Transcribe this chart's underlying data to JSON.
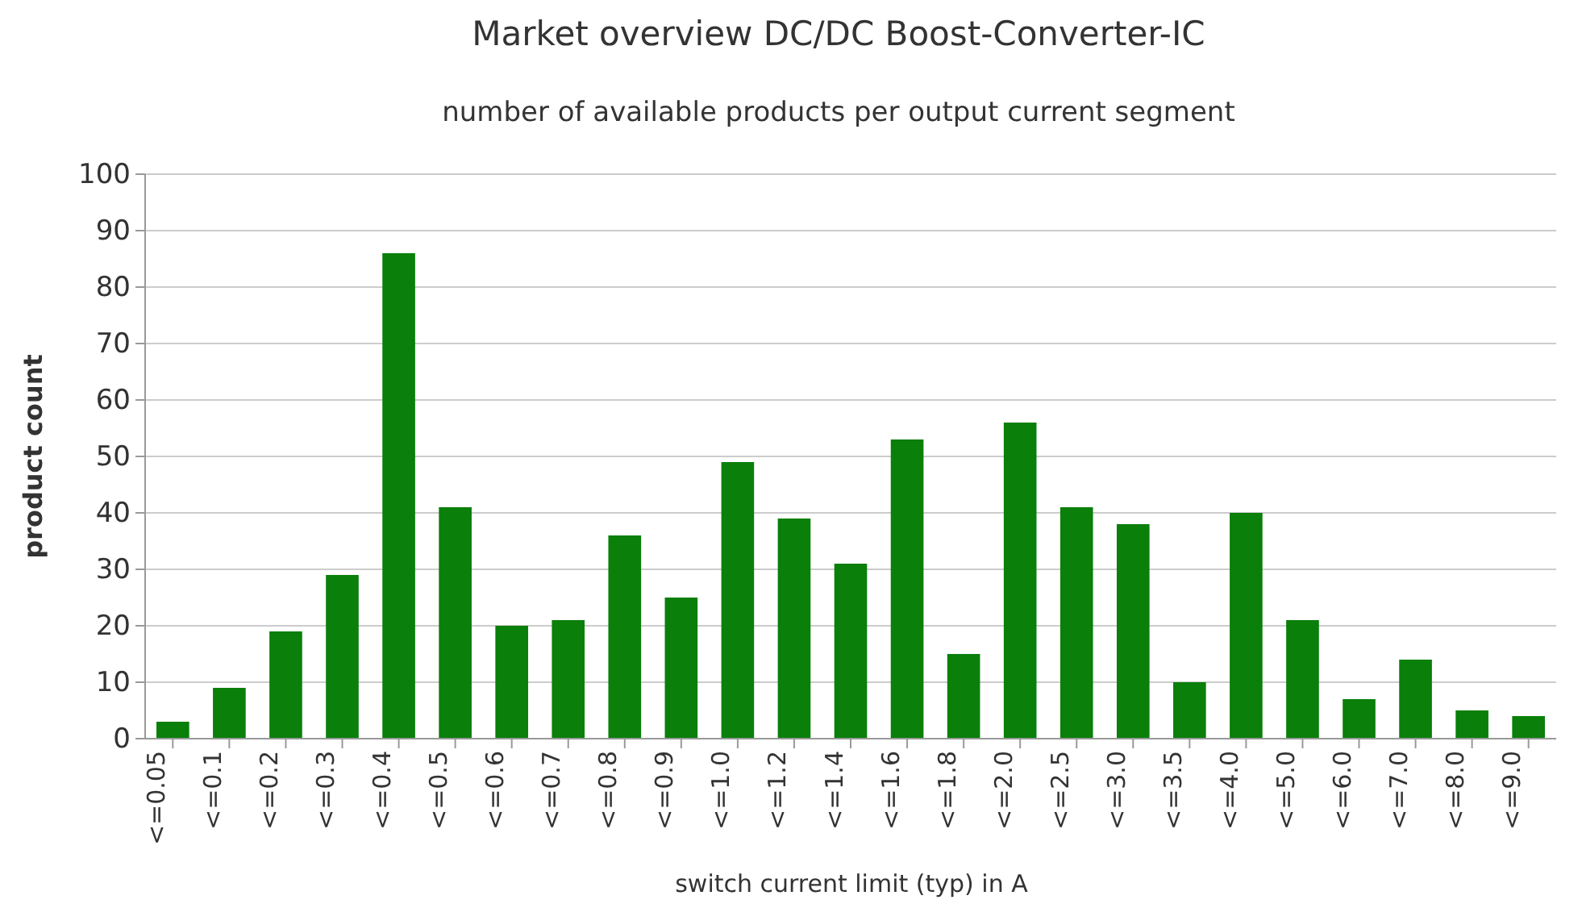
{
  "chart_data": {
    "type": "bar",
    "title": "Market overview DC/DC Boost-Converter-IC",
    "subtitle": "number of available products per output current segment",
    "xlabel": "switch current limit (typ) in A",
    "ylabel": "product count",
    "categories": [
      "<=0.05",
      "<=0.1",
      "<=0.2",
      "<=0.3",
      "<=0.4",
      "<=0.5",
      "<=0.6",
      "<=0.7",
      "<=0.8",
      "<=0.9",
      "<=1.0",
      "<=1.2",
      "<=1.4",
      "<=1.6",
      "<=1.8",
      "<=2.0",
      "<=2.5",
      "<=3.0",
      "<=3.5",
      "<=4.0",
      "<=5.0",
      "<=6.0",
      "<=7.0",
      "<=8.0",
      "<=9.0"
    ],
    "values": [
      3,
      9,
      19,
      29,
      86,
      41,
      20,
      21,
      36,
      25,
      49,
      39,
      31,
      53,
      15,
      56,
      41,
      38,
      10,
      40,
      21,
      7,
      14,
      5,
      4
    ],
    "color": "#0a7f0a",
    "ylim": [
      0,
      100
    ],
    "yticks": [
      0,
      10,
      20,
      30,
      40,
      50,
      60,
      70,
      80,
      90,
      100
    ],
    "grid": "y"
  }
}
